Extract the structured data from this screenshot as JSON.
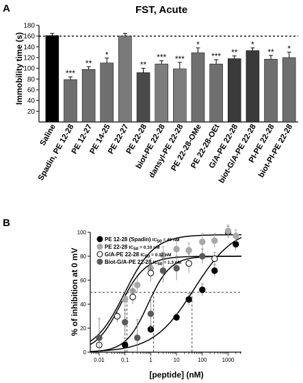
{
  "panels": {
    "a_label": "A",
    "b_label": "B"
  },
  "chart_data": [
    {
      "type": "bar",
      "panel": "A",
      "title": "FST, Acute",
      "ylabel": "Immobility time (s)",
      "xlabel": "",
      "ylim": [
        0,
        180
      ],
      "yticks": [
        20,
        40,
        60,
        80,
        100,
        120,
        140,
        160,
        180
      ],
      "reference_line": 160,
      "categories": [
        "Saline",
        "Spadin, PE 12-28",
        "PE 12-27",
        "PE 14-25",
        "PE 22-27",
        "PE 22-28",
        "biot-PE 22-28",
        "dansyl-PE 22-28",
        "PE 22-28-OMe",
        "PE 22-28-OEt",
        "G/A-PE 22-28",
        "biot-G/A-PE 22-28",
        "PI-PE 22-28",
        "biot-PI-PE 22-28"
      ],
      "values": [
        161,
        79,
        98,
        110,
        160,
        92,
        108,
        99,
        129,
        108,
        118,
        133,
        117,
        120
      ],
      "errors": [
        4,
        5,
        5,
        9,
        5,
        8,
        6,
        12,
        9,
        8,
        5,
        5,
        7,
        10
      ],
      "significance": [
        "",
        "***",
        "**",
        "*",
        "",
        "**",
        "***",
        "***",
        "*",
        "***",
        "**",
        "*",
        "**",
        "*"
      ],
      "colors": [
        "#000000",
        "#6f6f6f",
        "#6f6f6f",
        "#6f6f6f",
        "#7a7a7a",
        "#4a4a4a",
        "#7d7d7d",
        "#7d7d7d",
        "#6f6f6f",
        "#6f6f6f",
        "#3a3a3a",
        "#3a3a3a",
        "#6f6f6f",
        "#6f6f6f"
      ]
    },
    {
      "type": "scatter",
      "panel": "B",
      "xlabel": "[peptide] (nM)",
      "ylabel": "% of inhibition at 0 mV",
      "xscale": "log",
      "xticks": [
        "0.01",
        "0.1",
        "1",
        "10",
        "100",
        "1000"
      ],
      "ylim": [
        0,
        100
      ],
      "yticks": [
        0,
        20,
        40,
        60,
        80,
        100
      ],
      "reference_line": 50,
      "series": [
        {
          "name": "PE 12-28 (Spadin)",
          "ic50_label": "IC",
          "ic50_sub": "50",
          "ic50_value": " = 40 nM",
          "style": "filled-black",
          "color": "#000000",
          "x": [
            0.1,
            1,
            10,
            30,
            100,
            300,
            1000,
            2000
          ],
          "y": [
            6,
            19,
            29,
            44,
            52,
            68,
            100,
            90
          ],
          "err": [
            3,
            3,
            3,
            5,
            5,
            5,
            5,
            5
          ],
          "ic50": 40
        },
        {
          "name": "PE 22-28",
          "ic50_label": "IC",
          "ic50_sub": "50",
          "ic50_value": " = 0.10 nM",
          "style": "filled-lightgray",
          "color": "#a8a8a8",
          "x": [
            0.1,
            0.2,
            0.3,
            1,
            3,
            10,
            30,
            100,
            300,
            1000,
            2000
          ],
          "y": [
            44,
            51,
            56,
            70,
            81,
            86,
            85,
            92,
            93,
            101,
            97
          ],
          "err": [
            7,
            6,
            6,
            8,
            7,
            7,
            6,
            7,
            6,
            5,
            5
          ],
          "ic50": 0.1
        },
        {
          "name": "G/A-PE 22-28",
          "ic50_label": "IC",
          "ic50_sub": "50",
          "ic50_value": " = 0.12 nM",
          "style": "open",
          "color": "#000000",
          "x": [
            0.01,
            0.05,
            0.2,
            1,
            30,
            300
          ],
          "y": [
            6,
            30,
            46,
            66,
            74,
            78
          ],
          "err": [
            2,
            5,
            6,
            7,
            8,
            5
          ],
          "ic50": 0.12
        },
        {
          "name": "Biot-G/A-PE 22-28",
          "ic50_label": "IC",
          "ic50_sub": "50",
          "ic50_value": " = 1.3 nM",
          "style": "filled-darkgray",
          "color": "#5a5a5a",
          "x": [
            0.01,
            0.1,
            0.3,
            1,
            3,
            10,
            100
          ],
          "y": [
            12,
            25,
            12,
            32,
            68,
            70,
            80
          ],
          "err": [
            16,
            10,
            15,
            14,
            10,
            10,
            6
          ],
          "ic50": 1.3
        }
      ]
    }
  ]
}
